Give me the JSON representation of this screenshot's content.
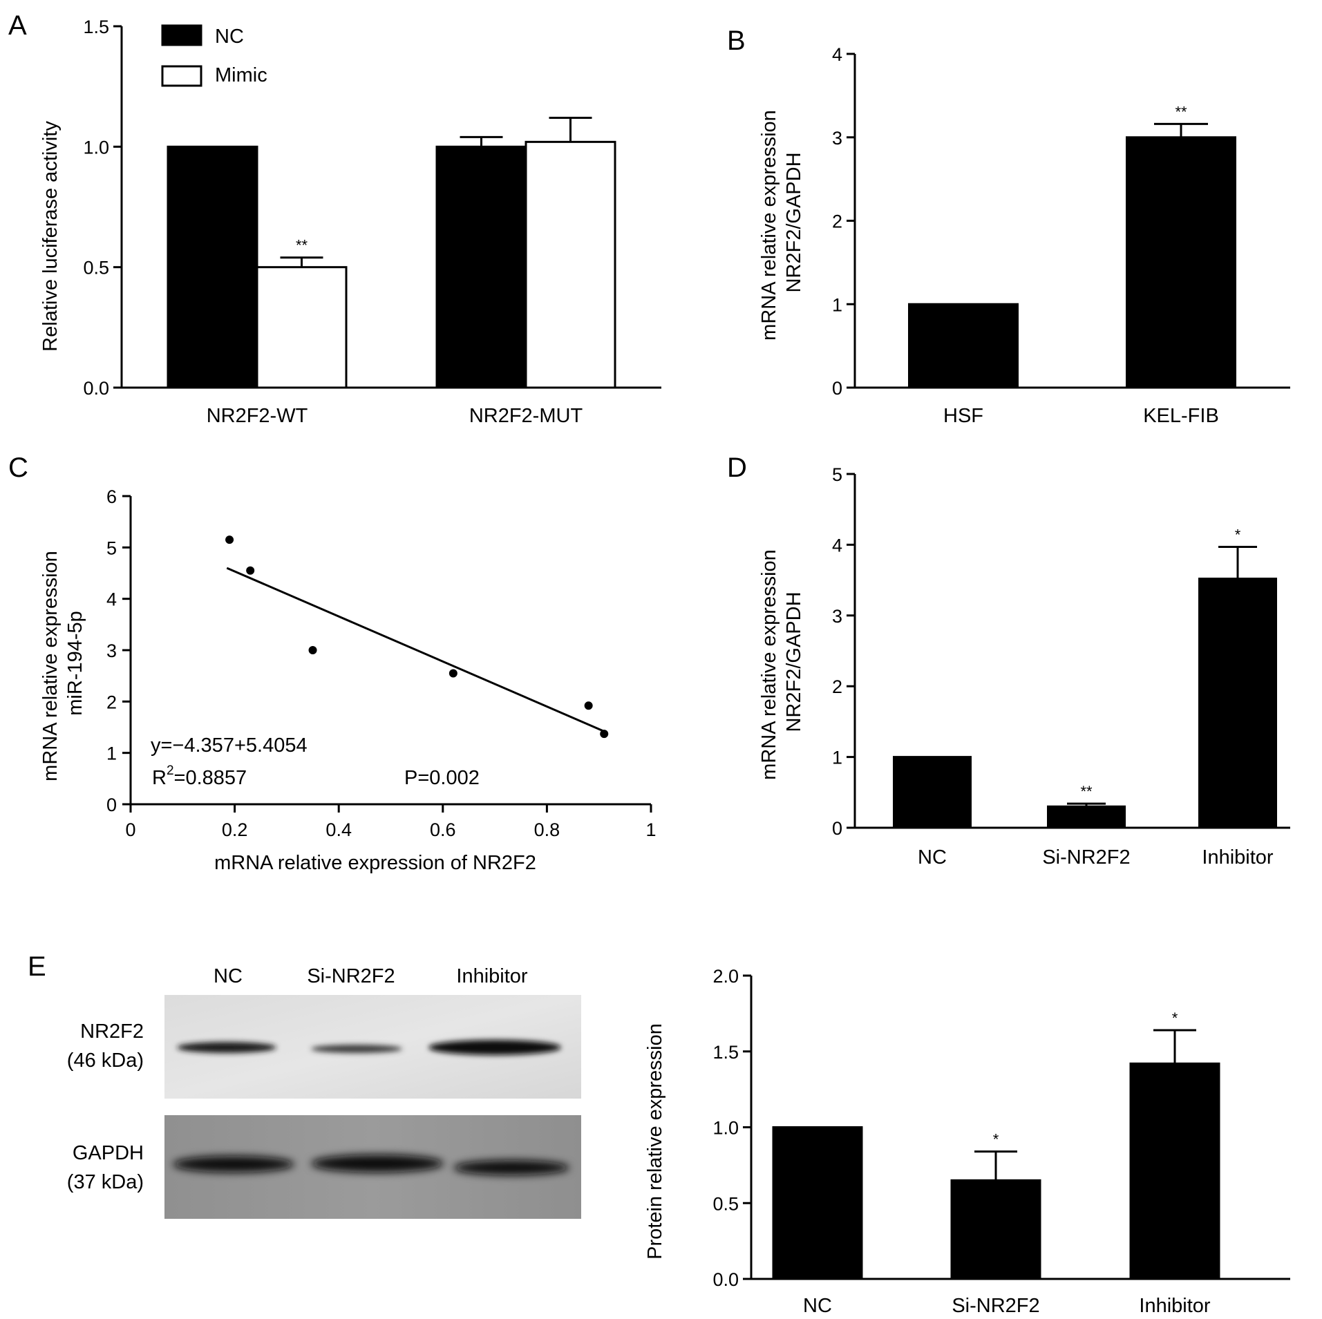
{
  "panels": [
    "A",
    "B",
    "C",
    "D",
    "E"
  ],
  "chart_data": [
    {
      "id": "A",
      "type": "bar",
      "categories": [
        "NR2F2-WT",
        "NR2F2-MUT"
      ],
      "series": [
        {
          "name": "NC",
          "values": [
            1.0,
            1.0
          ],
          "errors": [
            0,
            0.04
          ]
        },
        {
          "name": "Mimic",
          "values": [
            0.5,
            1.02
          ],
          "errors": [
            0.04,
            0.1
          ]
        }
      ],
      "significance": [
        [
          "",
          ""
        ],
        [
          "**",
          ""
        ]
      ],
      "ylabel": "Relative luciferase activity",
      "xlabel": "",
      "ylim": [
        0,
        1.5
      ],
      "yticks": [
        "0.0",
        "0.5",
        "1.0",
        "1.5"
      ],
      "legend": "top-left",
      "colors": {
        "NC": "#000000",
        "Mimic": "#ffffff"
      }
    },
    {
      "id": "B",
      "type": "bar",
      "categories": [
        "HSF",
        "KEL-FIB"
      ],
      "values": [
        1.0,
        3.0
      ],
      "errors": [
        0,
        0.16
      ],
      "significance": [
        "",
        "**"
      ],
      "ylabel_lines": [
        "mRNA relative expression",
        "NR2F2/GAPDH"
      ],
      "ylim": [
        0,
        4
      ],
      "yticks": [
        "0",
        "1",
        "2",
        "3",
        "4"
      ],
      "color": "#000000"
    },
    {
      "id": "C",
      "type": "scatter",
      "x": [
        0.19,
        0.23,
        0.35,
        0.62,
        0.88,
        0.91
      ],
      "y": [
        5.15,
        4.55,
        3.0,
        2.55,
        1.92,
        1.37
      ],
      "fit_line": {
        "x": [
          0.185,
          0.91
        ],
        "y": [
          4.6,
          1.42
        ]
      },
      "xlabel": "mRNA relative expression of NR2F2",
      "ylabel_lines": [
        "mRNA relative expression",
        "miR-194-5p"
      ],
      "xlim": [
        0,
        1
      ],
      "ylim": [
        0,
        6
      ],
      "xticks": [
        "0",
        "0.2",
        "0.4",
        "0.6",
        "0.8",
        "1"
      ],
      "yticks": [
        "0",
        "1",
        "2",
        "3",
        "4",
        "5",
        "6"
      ],
      "annotations": {
        "equation": "y=−4.357+5.4054",
        "r2_prefix": "R",
        "r2_sup": "2",
        "r2_value": "=0.8857",
        "p_value": "P=0.002"
      }
    },
    {
      "id": "D",
      "type": "bar",
      "categories": [
        "NC",
        "Si-NR2F2",
        "Inhibitor"
      ],
      "values": [
        1.0,
        0.3,
        3.52
      ],
      "errors": [
        0,
        0.04,
        0.45
      ],
      "significance": [
        "",
        "**",
        "*"
      ],
      "ylabel_lines": [
        "mRNA relative expression",
        "NR2F2/GAPDH"
      ],
      "ylim": [
        0,
        5
      ],
      "yticks": [
        "0",
        "1",
        "2",
        "3",
        "4",
        "5"
      ],
      "color": "#000000"
    },
    {
      "id": "E",
      "type": "bar",
      "categories": [
        "NC",
        "Si-NR2F2",
        "Inhibitor"
      ],
      "values": [
        1.0,
        0.65,
        1.42
      ],
      "errors": [
        0,
        0.19,
        0.22
      ],
      "significance": [
        "",
        "*",
        "*"
      ],
      "ylabel": "Protein relative expression",
      "ylim": [
        0,
        2.0
      ],
      "yticks": [
        "0.0",
        "0.5",
        "1.0",
        "1.5",
        "2.0"
      ],
      "color": "#000000"
    }
  ],
  "blot": {
    "lane_labels": [
      "NC",
      "Si-NR2F2",
      "Inhibitor"
    ],
    "rows": [
      {
        "label": "NR2F2",
        "size": "(46 kDa)"
      },
      {
        "label": "GAPDH",
        "size": "(37 kDa)"
      }
    ]
  }
}
